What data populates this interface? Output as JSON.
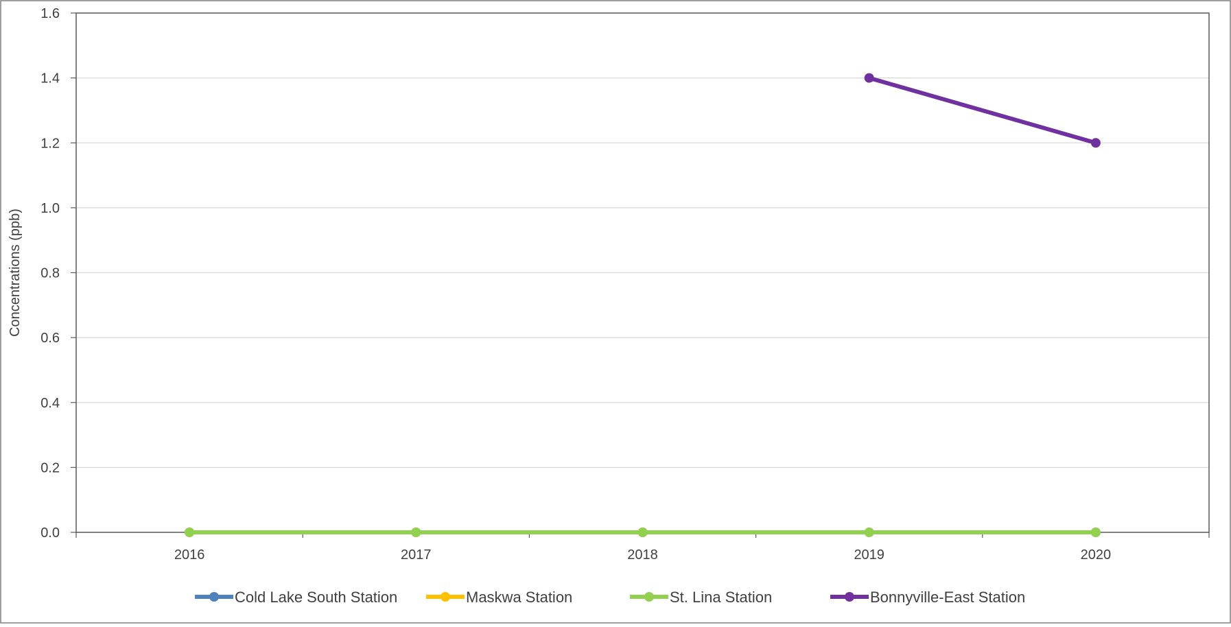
{
  "chart_data": {
    "type": "line",
    "title": "",
    "xlabel": "",
    "ylabel": "Concentrations (ppb)",
    "categories": [
      "2016",
      "2017",
      "2018",
      "2019",
      "2020"
    ],
    "ylim": [
      0,
      1.6
    ],
    "yticks": [
      "0.0",
      "0.2",
      "0.4",
      "0.6",
      "0.8",
      "1.0",
      "1.2",
      "1.4",
      "1.6"
    ],
    "grid": true,
    "legend_position": "bottom",
    "series": [
      {
        "name": "Cold Lake South Station",
        "color": "#4E81BD",
        "values": [
          0,
          0,
          0,
          0,
          0
        ]
      },
      {
        "name": "Maskwa Station",
        "color": "#FFC000",
        "values": [
          0,
          0,
          0,
          0,
          0
        ]
      },
      {
        "name": "St. Lina Station",
        "color": "#92D050",
        "values": [
          0,
          0,
          0,
          0,
          0
        ]
      },
      {
        "name": "Bonnyville-East Station",
        "color": "#7030A0",
        "values": [
          null,
          null,
          null,
          1.4,
          1.2
        ]
      }
    ]
  }
}
